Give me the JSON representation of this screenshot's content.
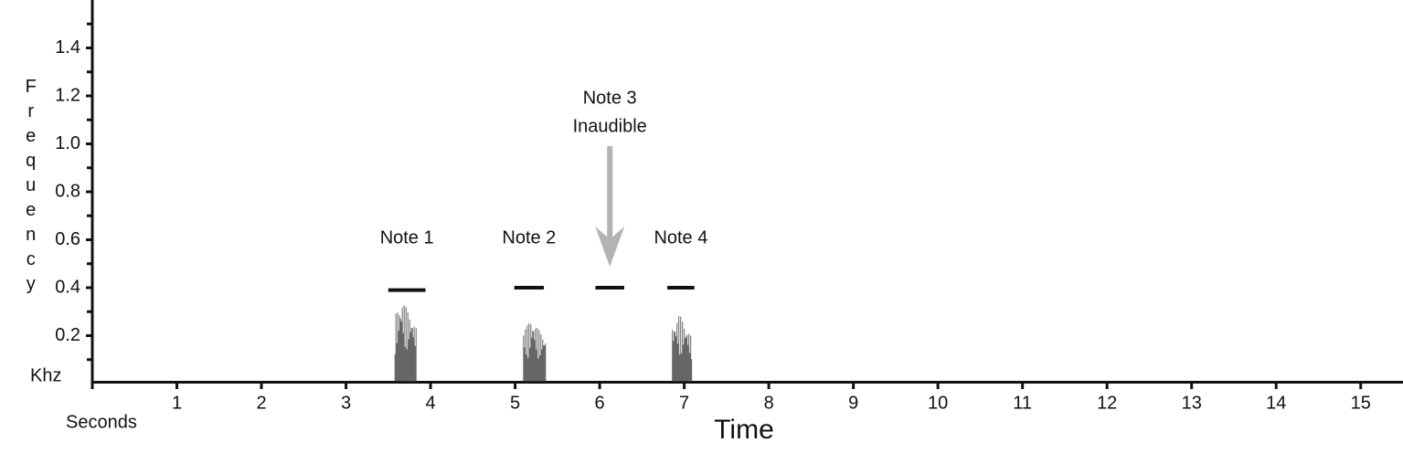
{
  "chart_data": {
    "type": "spectrogram",
    "x_label": "Time",
    "x_unit": "Seconds",
    "y_label": "Frequency",
    "y_unit": "Khz",
    "xlim": [
      0,
      15.5
    ],
    "xticks": [
      1,
      2,
      3,
      4,
      5,
      6,
      7,
      8,
      9,
      10,
      11,
      12,
      13,
      14,
      15
    ],
    "ylim": [
      0,
      1.6
    ],
    "yticks": [
      0.2,
      0.4,
      0.6,
      0.8,
      {
        "value": 1.0,
        "label": "1.0"
      },
      1.2,
      1.4
    ],
    "yminorticks": [
      0.1,
      0.3,
      0.5,
      0.7,
      0.9,
      1.1,
      1.3,
      1.5
    ],
    "color": "#111111",
    "notes": [
      {
        "label": "Note 1",
        "x0": 3.5,
        "x1": 3.94,
        "y": 0.39
      },
      {
        "label": "Note 2",
        "x0": 4.99,
        "x1": 5.34,
        "y": 0.4
      },
      {
        "label": "Note 3",
        "annotation": "Inaudible",
        "x0": 5.95,
        "x1": 6.29,
        "y": 0.4
      },
      {
        "label": "Note 4",
        "x0": 6.8,
        "x1": 7.12,
        "y": 0.4
      }
    ],
    "bursts": [
      {
        "x0": 3.58,
        "x1": 3.83,
        "ymax": 0.35
      },
      {
        "x0": 5.1,
        "x1": 5.37,
        "ymax": 0.27
      },
      {
        "x0": 6.86,
        "x1": 7.09,
        "ymax": 0.29
      }
    ]
  }
}
